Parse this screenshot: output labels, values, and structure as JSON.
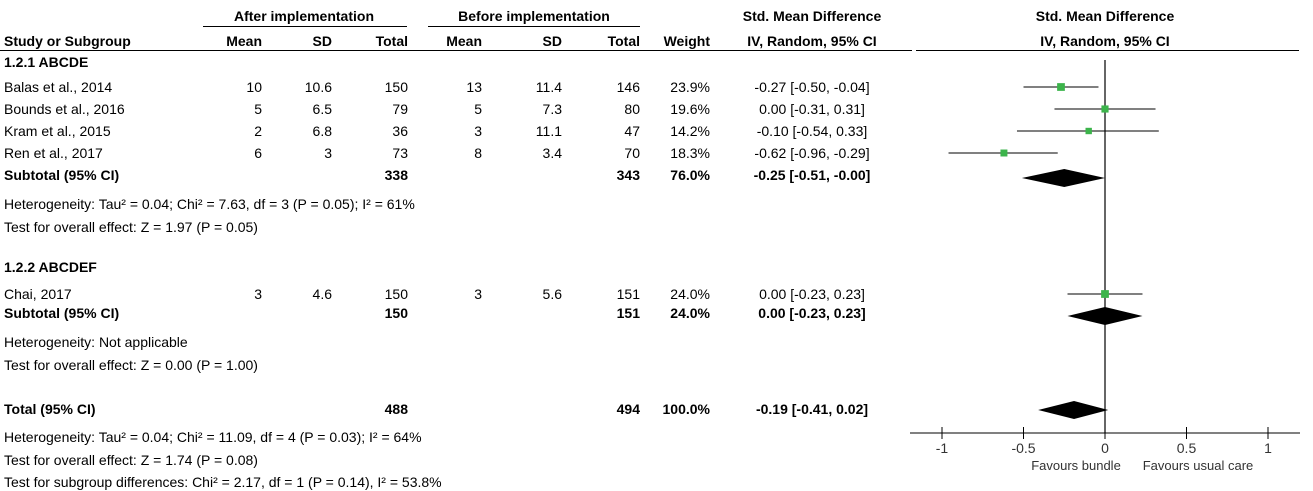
{
  "header": {
    "group_after": "After implementation",
    "group_before": "Before implementation",
    "smd_title": "Std. Mean Difference",
    "smd_method": "IV, Random, 95% CI",
    "plot_title": "Std. Mean Difference",
    "plot_method": "IV, Random, 95% CI",
    "columns": [
      "Study or Subgroup",
      "Mean",
      "SD",
      "Total",
      "Mean",
      "SD",
      "Total",
      "Weight"
    ]
  },
  "subgroups": [
    {
      "title": "1.2.1 ABCDE",
      "studies": [
        {
          "name": "Balas et al., 2014",
          "after_mean": "10",
          "after_sd": "10.6",
          "after_total": "150",
          "before_mean": "13",
          "before_sd": "11.4",
          "before_total": "146",
          "weight": "23.9%",
          "ci_text": "-0.27 [-0.50, -0.04]"
        },
        {
          "name": "Bounds et al., 2016",
          "after_mean": "5",
          "after_sd": "6.5",
          "after_total": "79",
          "before_mean": "5",
          "before_sd": "7.3",
          "before_total": "80",
          "weight": "19.6%",
          "ci_text": "0.00 [-0.31, 0.31]"
        },
        {
          "name": "Kram et al., 2015",
          "after_mean": "2",
          "after_sd": "6.8",
          "after_total": "36",
          "before_mean": "3",
          "before_sd": "11.1",
          "before_total": "47",
          "weight": "14.2%",
          "ci_text": "-0.10 [-0.54, 0.33]"
        },
        {
          "name": "Ren et al., 2017",
          "after_mean": "6",
          "after_sd": "3",
          "after_total": "73",
          "before_mean": "8",
          "before_sd": "3.4",
          "before_total": "70",
          "weight": "18.3%",
          "ci_text": "-0.62 [-0.96, -0.29]"
        }
      ],
      "subtotal": {
        "label": "Subtotal (95% CI)",
        "after_total": "338",
        "before_total": "343",
        "weight": "76.0%",
        "ci_text": "-0.25 [-0.51, -0.00]"
      },
      "heterogeneity": "Heterogeneity: Tau² = 0.04; Chi² = 7.63, df = 3 (P = 0.05); I² = 61%",
      "overall": "Test for overall effect: Z = 1.97 (P = 0.05)"
    },
    {
      "title": "1.2.2 ABCDEF",
      "studies": [
        {
          "name": "Chai, 2017",
          "after_mean": "3",
          "after_sd": "4.6",
          "after_total": "150",
          "before_mean": "3",
          "before_sd": "5.6",
          "before_total": "151",
          "weight": "24.0%",
          "ci_text": "0.00 [-0.23, 0.23]"
        }
      ],
      "subtotal": {
        "label": "Subtotal (95% CI)",
        "after_total": "150",
        "before_total": "151",
        "weight": "24.0%",
        "ci_text": "0.00 [-0.23, 0.23]"
      },
      "heterogeneity": "Heterogeneity: Not applicable",
      "overall": "Test for overall effect: Z = 0.00 (P = 1.00)"
    }
  ],
  "total": {
    "label": "Total (95% CI)",
    "after_total": "488",
    "before_total": "494",
    "weight": "100.0%",
    "ci_text": "-0.19 [-0.41, 0.02]",
    "heterogeneity": "Heterogeneity: Tau² = 0.04; Chi² = 11.09, df = 4 (P = 0.03); I² = 64%",
    "overall": "Test for overall effect: Z = 1.74 (P = 0.08)",
    "subgroup_diff": "Test for subgroup differences: Chi² = 2.17, df = 1 (P = 0.14), I² = 53.8%"
  },
  "chart_data": {
    "type": "forest",
    "x_ticks": [
      -1,
      -0.5,
      0,
      0.5,
      1
    ],
    "x_tick_labels": [
      "-1",
      "-0.5",
      "0",
      "0.5",
      "1"
    ],
    "xlim": [
      -1,
      1
    ],
    "favours_left": "Favours bundle",
    "favours_right": "Favours usual care",
    "studies": [
      {
        "name": "Balas et al., 2014",
        "estimate": -0.27,
        "lower": -0.5,
        "upper": -0.04,
        "weight": 23.9
      },
      {
        "name": "Bounds et al., 2016",
        "estimate": 0.0,
        "lower": -0.31,
        "upper": 0.31,
        "weight": 19.6
      },
      {
        "name": "Kram et al., 2015",
        "estimate": -0.1,
        "lower": -0.54,
        "upper": 0.33,
        "weight": 14.2
      },
      {
        "name": "Ren et al., 2017",
        "estimate": -0.62,
        "lower": -0.96,
        "upper": -0.29,
        "weight": 18.3
      },
      {
        "name": "Chai, 2017",
        "estimate": 0.0,
        "lower": -0.23,
        "upper": 0.23,
        "weight": 24.0
      }
    ],
    "summaries": [
      {
        "name": "Subtotal 1.2.1 ABCDE",
        "estimate": -0.25,
        "lower": -0.51,
        "upper": -0.0
      },
      {
        "name": "Subtotal 1.2.2 ABCDEF",
        "estimate": 0.0,
        "lower": -0.23,
        "upper": 0.23
      },
      {
        "name": "Total",
        "estimate": -0.19,
        "lower": -0.41,
        "upper": 0.02
      }
    ],
    "colors": {
      "study_marker": "#3cb44b",
      "summary": "#000000",
      "lines": "#000000"
    }
  }
}
